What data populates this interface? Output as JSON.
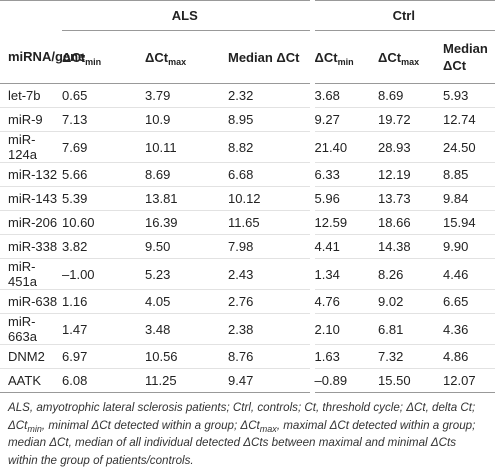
{
  "table": {
    "groups": [
      "ALS",
      "Ctrl"
    ],
    "columns": [
      {
        "text": "miRNA/gene"
      },
      {
        "text": "ΔCt",
        "sub": "min"
      },
      {
        "text": "ΔCt",
        "sub": "max"
      },
      {
        "text": "Median ΔCt"
      },
      {
        "text": "ΔCt",
        "sub": "min"
      },
      {
        "text": "ΔCt",
        "sub": "max"
      },
      {
        "text": "Median ΔCt"
      }
    ],
    "rows": [
      [
        "let-7b",
        "0.65",
        "3.79",
        "2.32",
        "3.68",
        "8.69",
        "5.93"
      ],
      [
        "miR-9",
        "7.13",
        "10.9",
        "8.95",
        "9.27",
        "19.72",
        "12.74"
      ],
      [
        "miR-124a",
        "7.69",
        "10.11",
        "8.82",
        "21.40",
        "28.93",
        "24.50"
      ],
      [
        "miR-132",
        "5.66",
        "8.69",
        "6.68",
        "6.33",
        "12.19",
        "8.85"
      ],
      [
        "miR-143",
        "5.39",
        "13.81",
        "10.12",
        "5.96",
        "13.73",
        "9.84"
      ],
      [
        "miR-206",
        "10.60",
        "16.39",
        "11.65",
        "12.59",
        "18.66",
        "15.94"
      ],
      [
        "miR-338",
        "3.82",
        "9.50",
        "7.98",
        "4.41",
        "14.38",
        "9.90"
      ],
      [
        "miR-451a",
        "–1.00",
        "5.23",
        "2.43",
        "1.34",
        "8.26",
        "4.46"
      ],
      [
        "miR-638",
        "1.16",
        "4.05",
        "2.76",
        "4.76",
        "9.02",
        "6.65"
      ],
      [
        "miR-663a",
        "1.47",
        "3.48",
        "2.38",
        "2.10",
        "6.81",
        "4.36"
      ],
      [
        "DNM2",
        "6.97",
        "10.56",
        "8.76",
        "1.63",
        "7.32",
        "4.86"
      ],
      [
        "AATK",
        "6.08",
        "11.25",
        "9.47",
        "–0.89",
        "15.50",
        "12.07"
      ]
    ]
  },
  "footnote": [
    {
      "text": "ALS, amyotrophic lateral sclerosis patients; Ctrl, controls; Ct, threshold cycle; ΔCt, delta Ct; ΔCt"
    },
    {
      "sub": "min"
    },
    {
      "text": ", minimal ΔCt detected within a group; ΔCt"
    },
    {
      "sub": "max"
    },
    {
      "text": ", maximal ΔCt detected within a group; median ΔCt, median of all individual detected ΔCts between maximal and minimal ΔCts within the group of patients/controls."
    }
  ]
}
